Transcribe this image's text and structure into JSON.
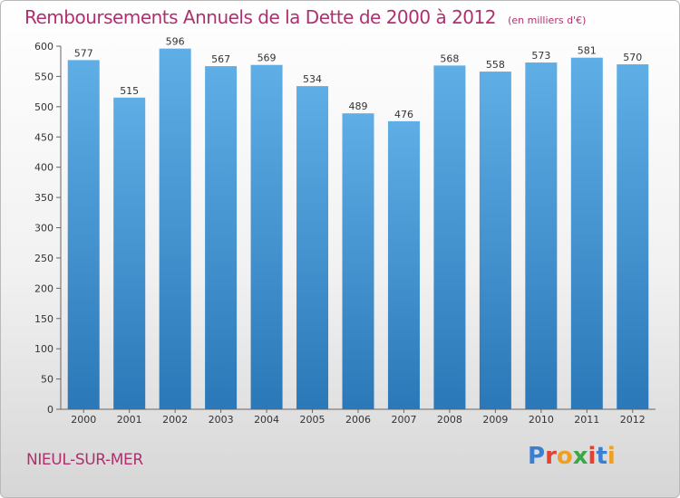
{
  "header": {
    "title": "Remboursements Annuels de la Dette de 2000 à 2012",
    "unit": "(en milliers d'€)"
  },
  "footer": {
    "commune": "NIEUL-SUR-MER",
    "logo_text": "Proxiti",
    "logo_colors": [
      "#3a7fd0",
      "#e8402f",
      "#f0a020",
      "#3aa845",
      "#e8402f",
      "#3a7fd0",
      "#f0a020"
    ]
  },
  "chart_data": {
    "type": "bar",
    "categories": [
      "2000",
      "2001",
      "2002",
      "2003",
      "2004",
      "2005",
      "2006",
      "2007",
      "2008",
      "2009",
      "2010",
      "2011",
      "2012"
    ],
    "values": [
      577,
      515,
      596,
      567,
      569,
      534,
      489,
      476,
      568,
      558,
      573,
      581,
      570
    ],
    "data_labels": [
      "577",
      "515",
      "596",
      "567",
      "569",
      "534",
      "489",
      "476",
      "568",
      "558",
      "573",
      "581",
      "570"
    ],
    "yticks": [
      "0",
      "50",
      "100",
      "150",
      "200",
      "250",
      "300",
      "350",
      "400",
      "450",
      "500",
      "550",
      "600"
    ],
    "ylim": [
      0,
      600
    ],
    "grid": false,
    "bar_color_top": "#5faee6",
    "bar_color_bottom": "#2b78b8"
  }
}
